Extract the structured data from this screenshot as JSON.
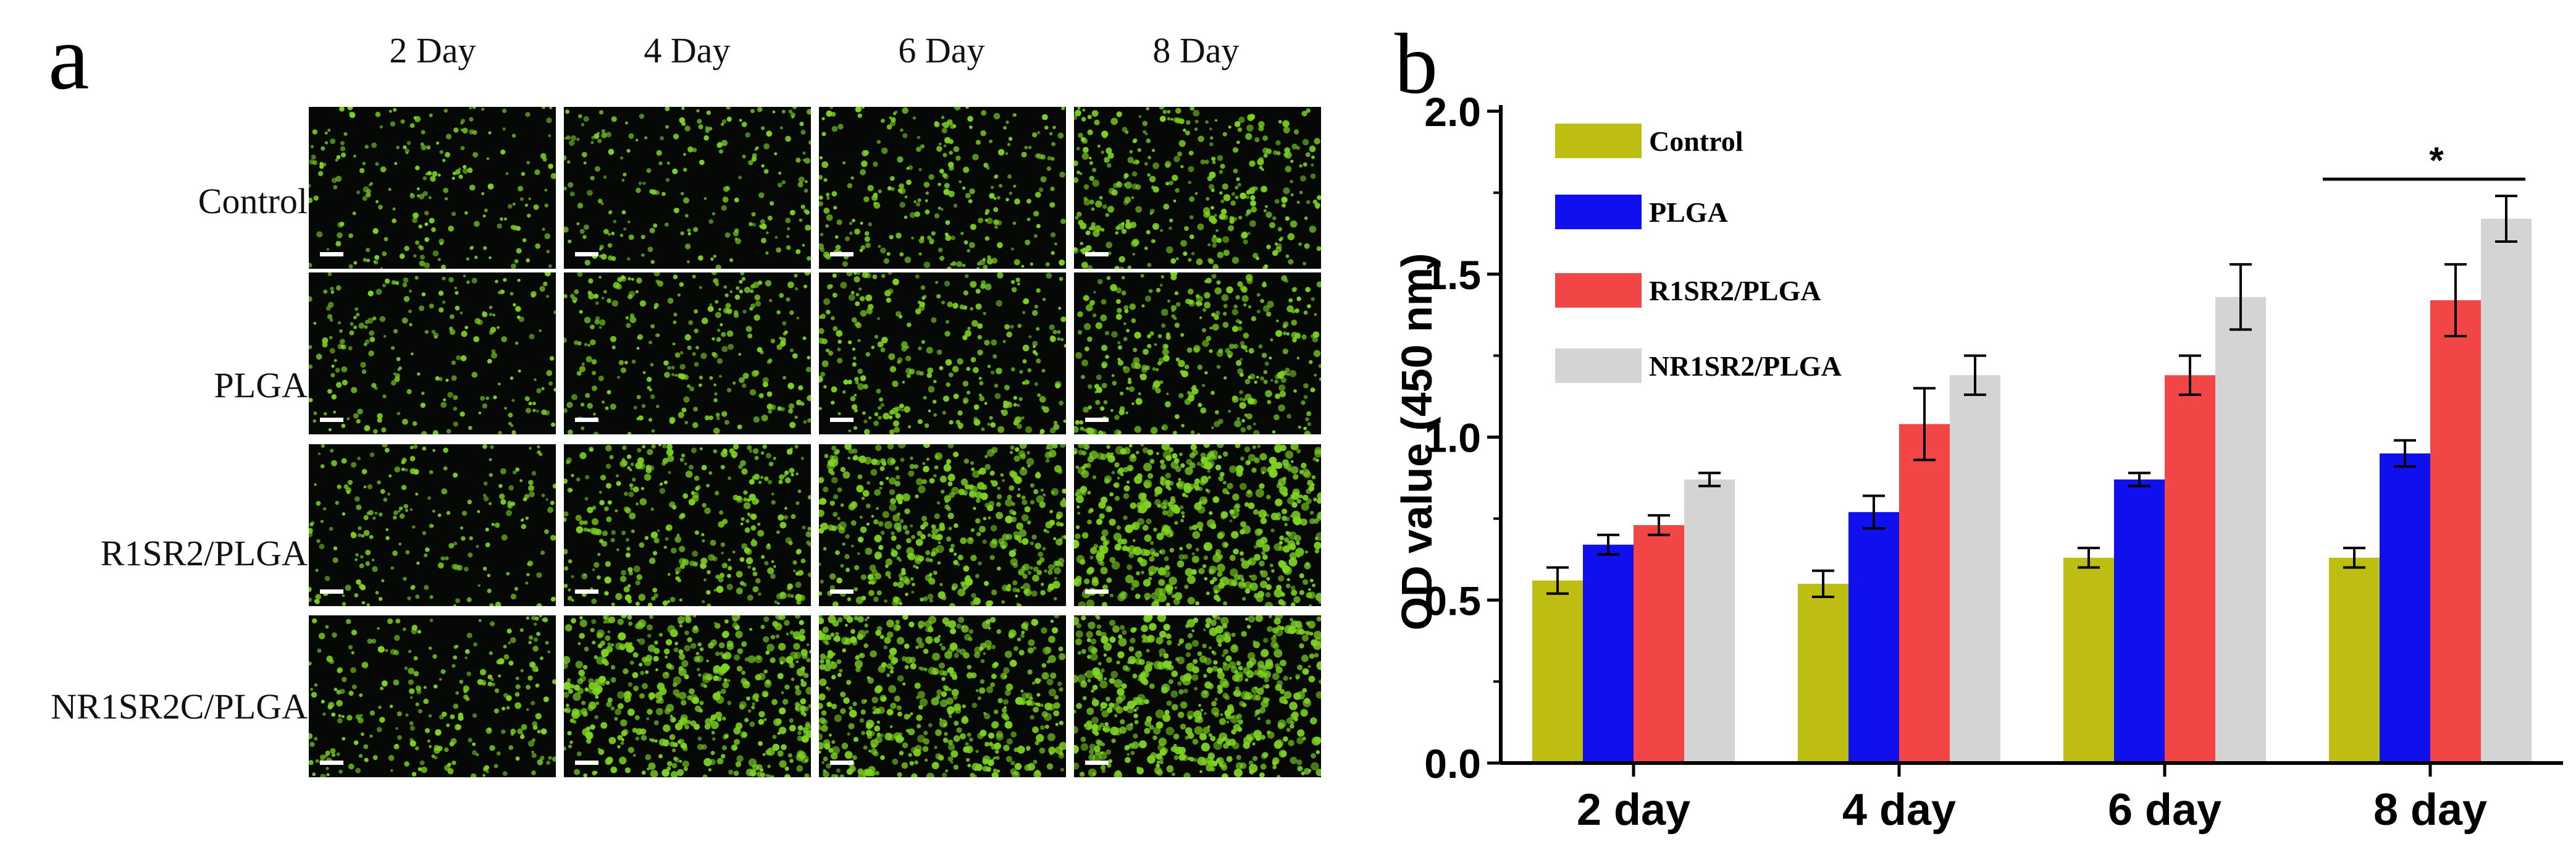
{
  "panel_a": {
    "letter": "a",
    "columns": [
      "2 Day",
      "4 Day",
      "6 Day",
      "8 Day"
    ],
    "rows": [
      "Control",
      "PLGA",
      "R1SR2/PLGA",
      "NR1SR2C/PLGA"
    ],
    "cell_color": "#7ed321",
    "density": [
      [
        0.3,
        0.3,
        0.4,
        0.55
      ],
      [
        0.3,
        0.4,
        0.45,
        0.55
      ],
      [
        0.3,
        0.55,
        0.8,
        1.0
      ],
      [
        0.4,
        0.85,
        0.85,
        1.0
      ]
    ]
  },
  "panel_b_letter": "b",
  "chart_data": {
    "type": "bar",
    "categories": [
      "2 day",
      "4 day",
      "6 day",
      "8 day"
    ],
    "ylabel": "OD value (450 nm)",
    "xlabel": "",
    "ylim": [
      0,
      2.0
    ],
    "yticks": [
      "0.0",
      "0.5",
      "1.0",
      "1.5",
      "2.0"
    ],
    "legend_position": "top-left",
    "series": [
      {
        "name": "Control",
        "color": "#bdbd12",
        "values": [
          0.56,
          0.55,
          0.63,
          0.63
        ],
        "errors": [
          0.04,
          0.04,
          0.03,
          0.03
        ]
      },
      {
        "name": "PLGA",
        "color": "#1010ee",
        "values": [
          0.67,
          0.77,
          0.87,
          0.95
        ],
        "errors": [
          0.03,
          0.05,
          0.02,
          0.04
        ]
      },
      {
        "name": "R1SR2/PLGA",
        "color": "#f24545",
        "values": [
          0.73,
          1.04,
          1.19,
          1.42
        ],
        "errors": [
          0.03,
          0.11,
          0.06,
          0.11
        ]
      },
      {
        "name": "NR1SR2/PLGA",
        "color": "#d4d4d4",
        "values": [
          0.87,
          1.19,
          1.43,
          1.67
        ],
        "errors": [
          0.02,
          0.06,
          0.1,
          0.07
        ]
      }
    ],
    "annotation": {
      "text": "*",
      "category_index": 3
    }
  }
}
